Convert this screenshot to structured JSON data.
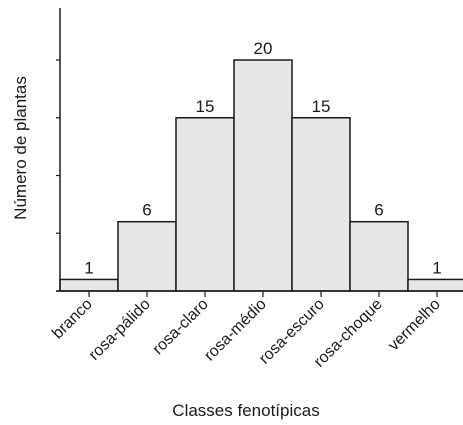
{
  "chart_data": {
    "type": "bar",
    "categories": [
      "branco",
      "rosa-pálido",
      "rosa-claro",
      "rosa-médio",
      "rosa-escuro",
      "rosa-choque",
      "vermelho"
    ],
    "values": [
      1,
      6,
      15,
      20,
      15,
      6,
      1
    ],
    "data_labels": [
      "1",
      "6",
      "15",
      "20",
      "15",
      "6",
      "1"
    ],
    "xlabel": "Classes fenotípicas",
    "ylabel": "Número de plantas",
    "ylim": [
      0,
      20
    ],
    "y_tick_values": [
      0,
      5,
      10,
      15,
      20
    ],
    "y_tick_labels_shown": false,
    "grid": false,
    "legend": "none",
    "bar_color": "#e6e6e6",
    "edge_color": "#1a1a1a"
  }
}
